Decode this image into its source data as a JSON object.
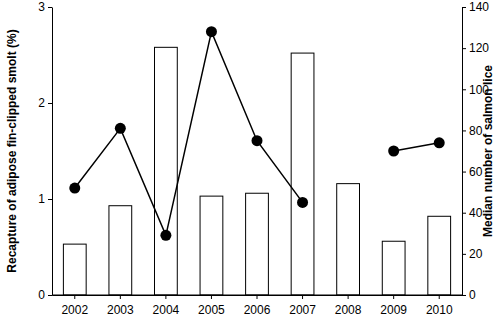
{
  "chart_data": {
    "type": "bar",
    "categories": [
      "2002",
      "2003",
      "2004",
      "2005",
      "2006",
      "2007",
      "2008",
      "2009",
      "2010"
    ],
    "series": [
      {
        "type": "bar",
        "color": "#ffffff",
        "values": [
          0.53,
          0.93,
          2.58,
          1.03,
          1.06,
          2.52,
          1.16,
          0.56,
          0.82
        ]
      },
      {
        "type": "line",
        "axis": "y2",
        "color": "#000000",
        "marker": "circle",
        "line_style": "solid",
        "values": [
          52,
          81,
          29,
          128,
          75,
          45,
          null,
          70,
          74
        ]
      }
    ],
    "y_label": "Recapture of adipose fin-clipped smolt (%)",
    "y2_label": "Median number of salmon lice",
    "ylim": [
      0,
      3
    ],
    "yticks": [
      0,
      1,
      2,
      3
    ],
    "y2lim": [
      0,
      140
    ],
    "y2ticks": [
      0,
      20,
      40,
      60,
      80,
      100,
      120,
      140
    ],
    "grid": false
  }
}
